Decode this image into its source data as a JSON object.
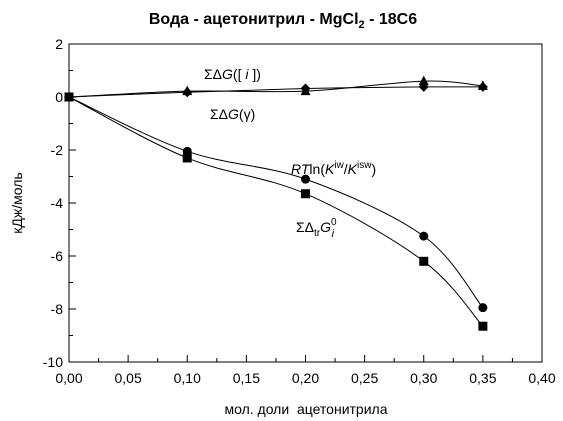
{
  "chart_data": {
    "type": "line",
    "title_parts": {
      "main": "Вода - ацетонитрил - MgCl",
      "sub": "2",
      "tail": " - 18C6"
    },
    "xlabel": "мол. доли  ацетонитрила",
    "ylabel": "кДж/моль",
    "xlim": [
      0,
      0.4
    ],
    "ylim": [
      -10,
      2
    ],
    "x_ticks": [
      0,
      0.05,
      0.1,
      0.15,
      0.2,
      0.25,
      0.3,
      0.35,
      0.4
    ],
    "x_tick_labels": [
      "0,00",
      "0,05",
      "0,10",
      "0,15",
      "0,20",
      "0,25",
      "0,30",
      "0,35",
      "0,40"
    ],
    "y_ticks": [
      -10,
      -8,
      -6,
      -4,
      -2,
      0,
      2
    ],
    "y_tick_labels": [
      "-10",
      "-8",
      "-6",
      "-4",
      "-2",
      "0",
      "2"
    ],
    "grid": false,
    "series": [
      {
        "marker": "diamond",
        "x": [
          0,
          0.1,
          0.2,
          0.3,
          0.35
        ],
        "y": [
          0,
          0.18,
          0.32,
          0.38,
          0.38
        ]
      },
      {
        "marker": "triangle",
        "x": [
          0,
          0.1,
          0.2,
          0.3,
          0.35
        ],
        "y": [
          0,
          0.22,
          0.22,
          0.6,
          0.42
        ]
      },
      {
        "marker": "circle",
        "x": [
          0,
          0.1,
          0.2,
          0.3,
          0.35
        ],
        "y": [
          0,
          -2.05,
          -3.1,
          -5.25,
          -7.95
        ]
      },
      {
        "marker": "square",
        "x": [
          0,
          0.1,
          0.2,
          0.3,
          0.35
        ],
        "y": [
          0,
          -2.3,
          -3.65,
          -6.2,
          -8.65
        ]
      }
    ],
    "annotations": {
      "sum_dg_i": {
        "pre": "ΣΔ",
        "it": "G",
        "post": "([ ",
        "it2": "i",
        "post2": " ])"
      },
      "sum_dg_gamma": {
        "pre": "ΣΔ",
        "it": "G",
        "post": "(γ)"
      },
      "rt_ln": {
        "it": "RT",
        "mid": "ln(",
        "k1": "K",
        "sup1": "iw",
        "slash": "/",
        "k2": "K",
        "sup2": "isw",
        "end": ")"
      },
      "sum_dtr": {
        "pre": "ΣΔ",
        "sub1": "tr",
        "it": "G",
        "sup": "0",
        "sub2": "i"
      }
    }
  }
}
